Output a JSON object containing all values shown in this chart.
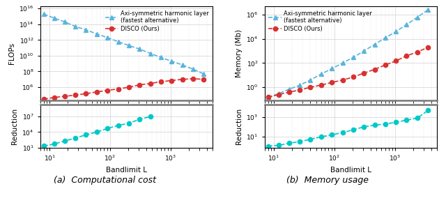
{
  "L_main": [
    8,
    12,
    18,
    27,
    40,
    60,
    91,
    137,
    206,
    309,
    464,
    696,
    1044,
    1566,
    2349,
    3524
  ],
  "L_red_flops": [
    8,
    12,
    18,
    27,
    40,
    60,
    91,
    137,
    206,
    309,
    464
  ],
  "L_red_mem": [
    8,
    12,
    18,
    27,
    40,
    60,
    91,
    137,
    206,
    309,
    464,
    696,
    1044,
    1566,
    2349,
    3524
  ],
  "flops_harmonic": [
    2000000000000000.0,
    600000000000000.0,
    200000000000000.0,
    50000000000000.0,
    20000000000000.0,
    6000000000000.0,
    2000000000000.0,
    600000000000.0,
    200000000000.0,
    70000000000.0,
    20000000000.0,
    6000000000.0,
    2000000000.0,
    700000000.0,
    200000000.0,
    50000000.0
  ],
  "flops_disco": [
    30000.0,
    50000.0,
    70000.0,
    100000.0,
    150000.0,
    250000.0,
    400000.0,
    600000.0,
    1000000.0,
    2000000.0,
    3000000.0,
    5000000.0,
    7000000.0,
    10000000.0,
    12000000.0,
    10000000.0
  ],
  "reduction_flops": [
    20,
    50,
    200,
    700,
    3000,
    10000,
    50000,
    200000,
    500000,
    3000000,
    10000000.0
  ],
  "memory_harmonic": [
    0.15,
    0.3,
    0.7,
    1.5,
    4,
    12,
    35,
    100,
    300,
    1000,
    3500,
    12000,
    40000,
    150000,
    600000,
    2500000
  ],
  "memory_disco": [
    0.15,
    0.25,
    0.4,
    0.6,
    1.0,
    1.5,
    2.5,
    4,
    7,
    15,
    30,
    70,
    150,
    400,
    800,
    2000
  ],
  "reduction_memory": [
    1.0,
    1.2,
    2,
    3,
    5,
    9,
    15,
    25,
    50,
    100,
    150,
    200,
    300,
    500,
    800,
    5000
  ],
  "color_harmonic": "#5ab4dc",
  "color_disco": "#d93030",
  "color_reduction": "#00c8c8",
  "label_harmonic": "Axi-symmetric harmonic layer\n(fastest alternative)",
  "label_disco": "DISCO (Ours)",
  "xlabel": "Bandlimit L",
  "ylabel_flops": "FLOPs",
  "ylabel_memory": "Memory (Mb)",
  "ylabel_reduction": "Reduction",
  "caption_a": "(a)  Computational cost",
  "caption_b": "(b)  Memory usage",
  "xlim": [
    7,
    5000
  ],
  "flops_ylim": [
    20000.0,
    2e+16
  ],
  "memory_ylim": [
    0.08,
    5000000.0
  ],
  "reduction_flops_ylim": [
    10,
    2000000000.0
  ],
  "reduction_memory_ylim": [
    0.7,
    20000.0
  ]
}
